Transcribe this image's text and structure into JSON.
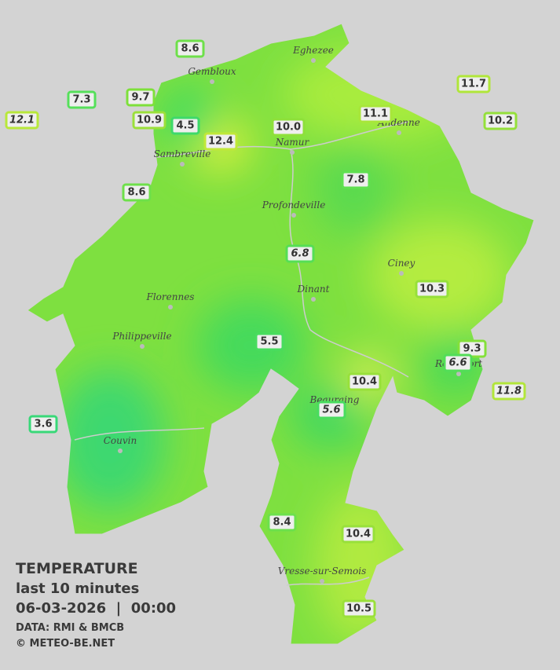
{
  "map": {
    "stations": [
      {
        "value": "8.6",
        "color": "#6ee04a"
      },
      {
        "value": "7.3",
        "color": "#55e05a"
      },
      {
        "value": "9.7",
        "color": "#7ee03a"
      },
      {
        "value": "12.1",
        "color": "#b8e83a",
        "italic": true
      },
      {
        "value": "10.9",
        "color": "#9be03a"
      },
      {
        "value": "4.5",
        "color": "#3ed96a"
      },
      {
        "value": "12.4",
        "color": "#c0e838"
      },
      {
        "value": "10.0",
        "color": "#8ee03a"
      },
      {
        "value": "11.1",
        "color": "#a8e63a"
      },
      {
        "value": "11.7",
        "color": "#b0e63a"
      },
      {
        "value": "10.2",
        "color": "#94e03a"
      },
      {
        "value": "8.6",
        "color": "#6ee04a"
      },
      {
        "value": "7.8",
        "color": "#5fe050"
      },
      {
        "value": "6.8",
        "color": "#55de55",
        "italic": true
      },
      {
        "value": "10.3",
        "color": "#96e03a"
      },
      {
        "value": "5.5",
        "color": "#48dc5f"
      },
      {
        "value": "9.3",
        "color": "#84e03a"
      },
      {
        "value": "6.6",
        "color": "#52dd58",
        "italic": true
      },
      {
        "value": "10.4",
        "color": "#98e03a"
      },
      {
        "value": "11.8",
        "color": "#b2e63a",
        "italic": true
      },
      {
        "value": "3.6",
        "color": "#38d878"
      },
      {
        "value": "5.6",
        "color": "#48dc5f",
        "italic": true
      },
      {
        "value": "8.4",
        "color": "#6ce04c"
      },
      {
        "value": "10.4",
        "color": "#98e03a"
      },
      {
        "value": "10.5",
        "color": "#9ae03a"
      }
    ],
    "towns": [
      "Eghezee",
      "Gembloux",
      "Andenne",
      "Namur",
      "Sambreville",
      "Profondeville",
      "Ciney",
      "Dinant",
      "Florennes",
      "Philippeville",
      "Rochefort",
      "Beauraing",
      "Couvin",
      "Vresse-sur-Semois"
    ],
    "legend": {
      "title": "TEMPERATURE",
      "period": "last 10 minutes",
      "datetime": "06-03-2026  |  00:00",
      "source": "DATA: RMI & BMCB",
      "copyright": "© METEO-BE.NET"
    }
  }
}
